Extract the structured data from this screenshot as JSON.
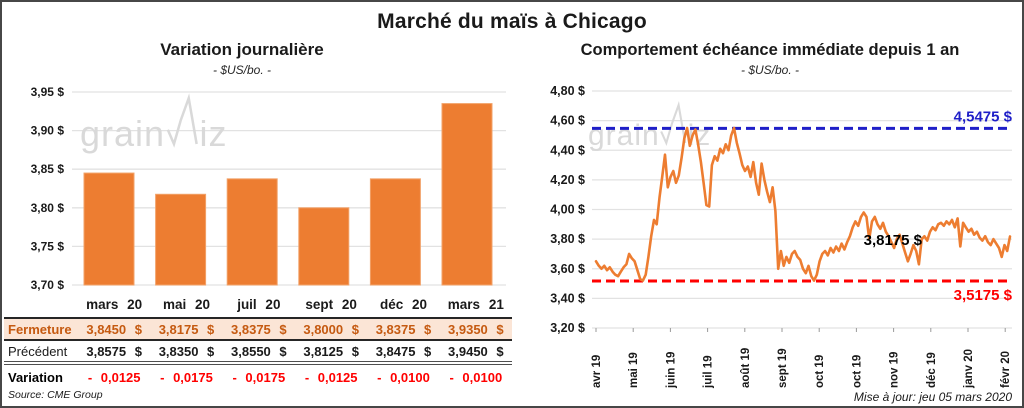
{
  "page": {
    "title": "Marché du maïs à Chicago",
    "source": "Source: CME Group",
    "updated": "Mise à jour: jeu 05 mars 2020",
    "watermark": "grainwiz"
  },
  "colors": {
    "orange": "#ED7D31",
    "orange_light": "#F2A269",
    "blue": "#1F1FC8",
    "red": "#FF0000",
    "brown": "#C55A11",
    "peach": "#FBE5D6",
    "grid": "#E2E2E2",
    "watermark": "#D9D9D9",
    "text": "#1a1a1a"
  },
  "chart_data": [
    {
      "type": "bar",
      "title": "Variation journalière",
      "subtitle": "- $US/bo. -",
      "categories": [
        "mars 20",
        "mai 20",
        "juil 20",
        "sept 20",
        "déc 20",
        "mars 21"
      ],
      "values": [
        3.845,
        3.8175,
        3.8375,
        3.8,
        3.8375,
        3.935
      ],
      "xlabel": "",
      "ylabel": "",
      "ylim": [
        3.7,
        3.95
      ],
      "ytick_step": 0.05,
      "ytick_labels": [
        "3,95 $",
        "3,90 $",
        "3,85 $",
        "3,80 $",
        "3,75 $",
        "3,70 $"
      ],
      "grid": true,
      "legend": "none"
    },
    {
      "type": "line",
      "title": "Comportement échéance immédiate depuis 1 an",
      "subtitle": "- $US/bo. -",
      "x_tick_labels": [
        "avr 19",
        "mai 19",
        "juin 19",
        "juil 19",
        "août 19",
        "sept 19",
        "oct 19",
        "oct 19",
        "nov 19",
        "déc 19",
        "janv 20",
        "févr 20"
      ],
      "ylim": [
        3.2,
        4.8
      ],
      "ytick_step": 0.2,
      "ytick_labels": [
        "4,80 $",
        "4,60 $",
        "4,40 $",
        "4,20 $",
        "4,00 $",
        "3,80 $",
        "3,60 $",
        "3,40 $",
        "3,20 $"
      ],
      "grid": true,
      "legend": "none",
      "reference_lines": [
        {
          "value": 4.5475,
          "label": "4,5475 $",
          "color": "#1F1FC8",
          "style": "dashed",
          "label_side": "above"
        },
        {
          "value": 3.5175,
          "label": "3,5175 $",
          "color": "#FF0000",
          "style": "dashed",
          "label_side": "below"
        }
      ],
      "last_value_label": "3,8175 $",
      "last_value": 3.8175,
      "values": [
        3.65,
        3.62,
        3.6,
        3.62,
        3.59,
        3.61,
        3.58,
        3.56,
        3.55,
        3.58,
        3.61,
        3.63,
        3.7,
        3.67,
        3.65,
        3.59,
        3.53,
        3.52,
        3.56,
        3.68,
        3.82,
        3.93,
        3.9,
        4.08,
        4.22,
        4.37,
        4.15,
        4.22,
        4.26,
        4.18,
        4.23,
        4.35,
        4.48,
        4.55,
        4.43,
        4.5,
        4.54,
        4.44,
        4.32,
        4.18,
        4.03,
        4.02,
        4.3,
        4.36,
        4.33,
        4.41,
        4.38,
        4.44,
        4.4,
        4.5,
        4.55,
        4.45,
        4.38,
        4.3,
        4.26,
        4.29,
        4.22,
        4.32,
        4.18,
        4.1,
        4.31,
        4.2,
        4.12,
        4.05,
        4.15,
        3.99,
        3.6,
        3.72,
        3.62,
        3.68,
        3.64,
        3.7,
        3.72,
        3.68,
        3.66,
        3.6,
        3.57,
        3.62,
        3.55,
        3.52,
        3.56,
        3.65,
        3.7,
        3.72,
        3.69,
        3.74,
        3.71,
        3.75,
        3.72,
        3.77,
        3.73,
        3.78,
        3.82,
        3.88,
        3.92,
        3.89,
        3.95,
        3.98,
        3.95,
        3.8,
        3.92,
        3.95,
        3.9,
        3.87,
        3.91,
        3.85,
        3.82,
        3.78,
        3.74,
        3.8,
        3.83,
        3.77,
        3.71,
        3.65,
        3.7,
        3.76,
        3.72,
        3.63,
        3.8,
        3.82,
        3.79,
        3.85,
        3.88,
        3.86,
        3.9,
        3.91,
        3.89,
        3.92,
        3.9,
        3.93,
        3.88,
        3.94,
        3.75,
        3.91,
        3.88,
        3.85,
        3.87,
        3.83,
        3.85,
        3.81,
        3.79,
        3.82,
        3.78,
        3.76,
        3.8,
        3.77,
        3.74,
        3.68,
        3.76,
        3.72,
        3.8175
      ]
    }
  ],
  "table": {
    "columns": [
      "mars 20",
      "mai 20",
      "juil 20",
      "sept 20",
      "déc 20",
      "mars 21"
    ],
    "rows": [
      {
        "label": "Fermeture",
        "cells": [
          "3,8450 $",
          "3,8175 $",
          "3,8375 $",
          "3,8000 $",
          "3,8375 $",
          "3,9350 $"
        ]
      },
      {
        "label": "Précédent",
        "cells": [
          "3,8575 $",
          "3,8350 $",
          "3,8550 $",
          "3,8125 $",
          "3,8475 $",
          "3,9450 $"
        ]
      },
      {
        "label": "Variation",
        "cells": [
          "- 0,0125",
          "- 0,0175",
          "- 0,0175",
          "- 0,0125",
          "- 0,0100",
          "- 0,0100"
        ]
      }
    ]
  }
}
